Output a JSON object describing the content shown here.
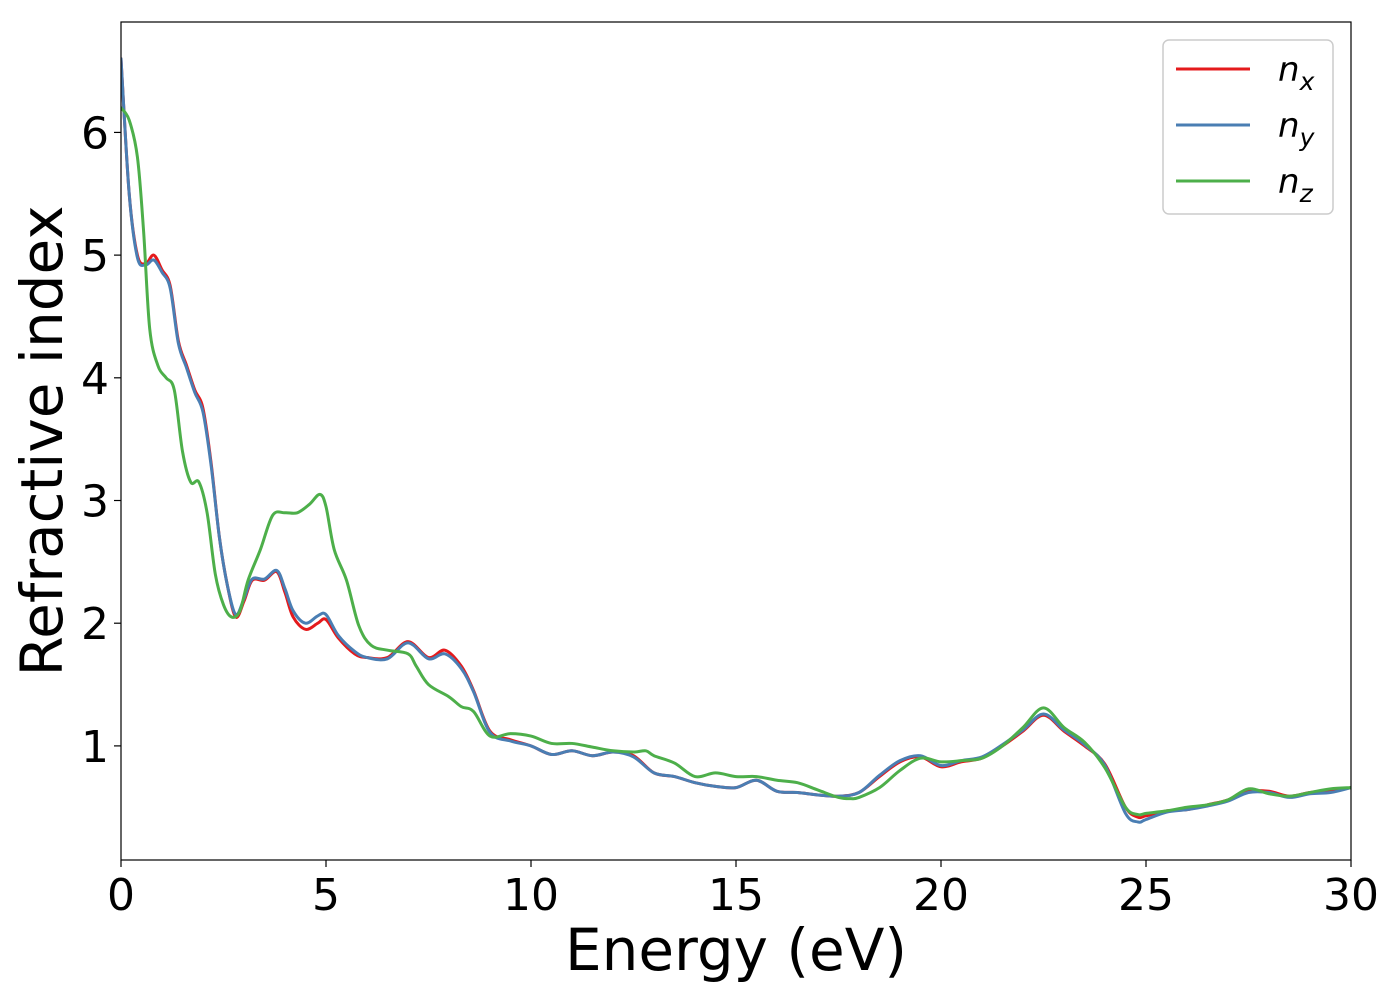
{
  "chart_data": {
    "type": "line",
    "xlabel": "Energy (eV)",
    "ylabel": "Refractive index",
    "xlim": [
      0,
      30
    ],
    "ylim": [
      0.07,
      6.9
    ],
    "xticks": [
      "0",
      "5",
      "10",
      "15",
      "20",
      "25",
      "30"
    ],
    "yticks": [
      "1",
      "2",
      "3",
      "4",
      "5",
      "6"
    ],
    "grid": false,
    "legend_position": "top-right",
    "series": [
      {
        "name": "n",
        "subscript": "x",
        "color": "#e41a1c",
        "x": [
          0,
          0.2,
          0.4,
          0.6,
          0.8,
          1.0,
          1.2,
          1.4,
          1.6,
          1.8,
          2.0,
          2.2,
          2.4,
          2.6,
          2.8,
          3.0,
          3.2,
          3.5,
          3.8,
          4.0,
          4.2,
          4.5,
          4.8,
          5.0,
          5.3,
          5.7,
          6.0,
          6.5,
          7.0,
          7.5,
          7.9,
          8.3,
          8.6,
          9.0,
          9.5,
          10.0,
          10.5,
          11.0,
          11.5,
          12.0,
          12.5,
          13.0,
          13.5,
          14.0,
          14.5,
          15.0,
          15.5,
          16.0,
          16.5,
          17.0,
          17.5,
          18.0,
          18.5,
          19.0,
          19.5,
          20.0,
          20.5,
          21.0,
          21.5,
          22.0,
          22.5,
          23.0,
          23.5,
          24.0,
          24.5,
          24.8,
          25.0,
          25.5,
          26.0,
          26.5,
          27.0,
          27.5,
          28.0,
          28.5,
          29.0,
          29.5,
          30.0
        ],
        "values": [
          6.6,
          5.5,
          5.0,
          4.93,
          5.0,
          4.88,
          4.75,
          4.3,
          4.1,
          3.9,
          3.75,
          3.3,
          2.7,
          2.3,
          2.05,
          2.18,
          2.35,
          2.35,
          2.42,
          2.25,
          2.05,
          1.95,
          2.0,
          2.03,
          1.88,
          1.75,
          1.72,
          1.72,
          1.85,
          1.72,
          1.78,
          1.65,
          1.45,
          1.12,
          1.05,
          1.0,
          0.93,
          0.96,
          0.92,
          0.95,
          0.92,
          0.78,
          0.75,
          0.7,
          0.67,
          0.66,
          0.72,
          0.63,
          0.62,
          0.6,
          0.59,
          0.62,
          0.75,
          0.87,
          0.91,
          0.83,
          0.87,
          0.9,
          1.0,
          1.12,
          1.25,
          1.12,
          1.0,
          0.85,
          0.5,
          0.42,
          0.43,
          0.47,
          0.48,
          0.52,
          0.56,
          0.63,
          0.63,
          0.59,
          0.62,
          0.63,
          0.66
        ]
      },
      {
        "name": "n",
        "subscript": "y",
        "color": "#4a7eb3",
        "x": [
          0,
          0.2,
          0.4,
          0.6,
          0.8,
          1.0,
          1.2,
          1.4,
          1.6,
          1.8,
          2.0,
          2.2,
          2.4,
          2.6,
          2.8,
          3.0,
          3.2,
          3.5,
          3.8,
          4.0,
          4.2,
          4.5,
          4.8,
          5.0,
          5.3,
          5.7,
          6.0,
          6.5,
          7.0,
          7.5,
          7.9,
          8.3,
          8.6,
          9.0,
          9.5,
          10.0,
          10.5,
          11.0,
          11.5,
          12.0,
          12.5,
          13.0,
          13.5,
          14.0,
          14.5,
          15.0,
          15.5,
          16.0,
          16.5,
          17.0,
          17.5,
          18.0,
          18.5,
          19.0,
          19.5,
          20.0,
          20.5,
          21.0,
          21.5,
          22.0,
          22.5,
          23.0,
          23.5,
          24.0,
          24.5,
          24.8,
          25.0,
          25.5,
          26.0,
          26.5,
          27.0,
          27.5,
          28.0,
          28.5,
          29.0,
          29.5,
          30.0
        ],
        "values": [
          6.6,
          5.5,
          4.98,
          4.92,
          4.96,
          4.86,
          4.73,
          4.28,
          4.08,
          3.88,
          3.72,
          3.28,
          2.7,
          2.3,
          2.07,
          2.2,
          2.36,
          2.36,
          2.43,
          2.28,
          2.1,
          2.0,
          2.06,
          2.07,
          1.9,
          1.77,
          1.72,
          1.71,
          1.84,
          1.71,
          1.75,
          1.63,
          1.44,
          1.11,
          1.04,
          1.0,
          0.93,
          0.96,
          0.92,
          0.95,
          0.91,
          0.78,
          0.75,
          0.7,
          0.67,
          0.66,
          0.72,
          0.63,
          0.62,
          0.6,
          0.59,
          0.62,
          0.76,
          0.88,
          0.92,
          0.84,
          0.88,
          0.91,
          1.01,
          1.13,
          1.26,
          1.13,
          1.01,
          0.84,
          0.45,
          0.38,
          0.4,
          0.46,
          0.48,
          0.51,
          0.55,
          0.62,
          0.62,
          0.58,
          0.61,
          0.62,
          0.66
        ]
      },
      {
        "name": "n",
        "subscript": "z",
        "color": "#4daf4a",
        "x": [
          0,
          0.2,
          0.4,
          0.55,
          0.7,
          0.9,
          1.1,
          1.3,
          1.5,
          1.7,
          1.9,
          2.1,
          2.3,
          2.5,
          2.7,
          2.9,
          3.1,
          3.4,
          3.7,
          4.0,
          4.3,
          4.6,
          4.85,
          5.0,
          5.2,
          5.5,
          5.8,
          6.1,
          6.5,
          7.0,
          7.2,
          7.5,
          8.0,
          8.3,
          8.6,
          9.0,
          9.5,
          10.0,
          10.5,
          11.0,
          11.5,
          12.0,
          12.5,
          12.8,
          13.0,
          13.5,
          14.0,
          14.5,
          15.0,
          15.5,
          16.0,
          16.5,
          17.0,
          17.5,
          17.8,
          18.0,
          18.5,
          19.0,
          19.5,
          20.0,
          20.5,
          21.0,
          21.5,
          22.0,
          22.5,
          23.0,
          23.5,
          24.0,
          24.5,
          24.8,
          25.0,
          25.5,
          26.0,
          26.5,
          27.0,
          27.5,
          28.0,
          28.5,
          29.0,
          29.5,
          30.0
        ],
        "values": [
          6.2,
          6.1,
          5.8,
          5.2,
          4.4,
          4.1,
          4.0,
          3.9,
          3.4,
          3.15,
          3.15,
          2.9,
          2.4,
          2.15,
          2.05,
          2.1,
          2.35,
          2.6,
          2.88,
          2.9,
          2.9,
          2.97,
          3.05,
          2.95,
          2.6,
          2.35,
          1.98,
          1.82,
          1.78,
          1.75,
          1.65,
          1.5,
          1.4,
          1.32,
          1.28,
          1.08,
          1.1,
          1.08,
          1.02,
          1.02,
          0.99,
          0.96,
          0.95,
          0.96,
          0.92,
          0.86,
          0.75,
          0.78,
          0.75,
          0.75,
          0.72,
          0.7,
          0.64,
          0.58,
          0.57,
          0.58,
          0.66,
          0.8,
          0.9,
          0.87,
          0.88,
          0.9,
          1.0,
          1.15,
          1.31,
          1.15,
          1.03,
          0.82,
          0.5,
          0.44,
          0.45,
          0.47,
          0.5,
          0.52,
          0.56,
          0.65,
          0.61,
          0.59,
          0.62,
          0.65,
          0.66
        ]
      }
    ]
  }
}
